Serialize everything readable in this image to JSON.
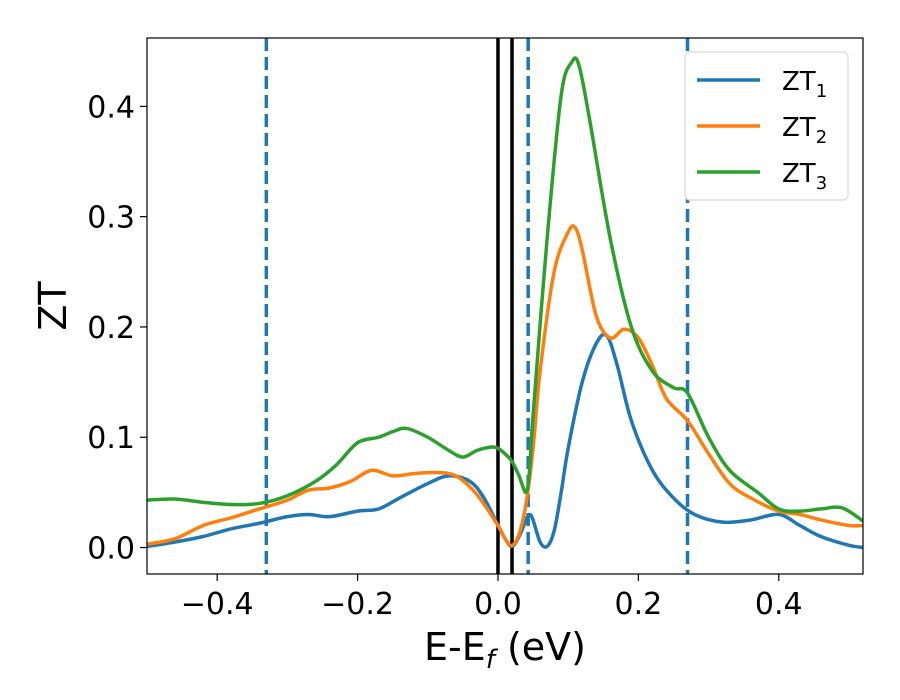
{
  "chart_data": {
    "type": "line",
    "xlabel": "E-E",
    "xlabel_subscript": "f",
    "xlabel_unit": " (eV)",
    "ylabel": "ZT",
    "xlim": [
      -0.5,
      0.52
    ],
    "ylim": [
      -0.024,
      0.462
    ],
    "xticks": [
      -0.4,
      -0.2,
      0.0,
      0.2,
      0.4
    ],
    "xtick_labels": [
      "−0.4",
      "−0.2",
      "0.0",
      "0.2",
      "0.4"
    ],
    "yticks": [
      0.0,
      0.1,
      0.2,
      0.3,
      0.4
    ],
    "ytick_labels": [
      "0.0",
      "0.1",
      "0.2",
      "0.3",
      "0.4"
    ],
    "grid": false,
    "legend_position": "top-right",
    "vlines_dashed": {
      "color": "#1f77b4",
      "x": [
        -0.33,
        0.043,
        0.27
      ]
    },
    "vlines_solid": {
      "color": "#000000",
      "x": [
        0.0,
        0.02
      ]
    },
    "series": [
      {
        "name": "ZT",
        "name_subscript": "1",
        "color": "#1f77b4",
        "x": [
          -0.5,
          -0.46,
          -0.42,
          -0.38,
          -0.34,
          -0.3,
          -0.27,
          -0.24,
          -0.2,
          -0.17,
          -0.14,
          -0.1,
          -0.07,
          -0.04,
          -0.02,
          0.0,
          0.01,
          0.02,
          0.03,
          0.04,
          0.045,
          0.05,
          0.06,
          0.07,
          0.08,
          0.09,
          0.1,
          0.12,
          0.14,
          0.155,
          0.17,
          0.19,
          0.22,
          0.25,
          0.28,
          0.32,
          0.36,
          0.4,
          0.43,
          0.46,
          0.5,
          0.52
        ],
        "values": [
          0.001,
          0.005,
          0.01,
          0.017,
          0.022,
          0.028,
          0.03,
          0.028,
          0.033,
          0.035,
          0.045,
          0.058,
          0.065,
          0.06,
          0.045,
          0.02,
          0.008,
          0.001,
          0.01,
          0.025,
          0.03,
          0.025,
          0.005,
          0.001,
          0.015,
          0.05,
          0.09,
          0.15,
          0.185,
          0.192,
          0.165,
          0.115,
          0.07,
          0.045,
          0.03,
          0.023,
          0.025,
          0.03,
          0.02,
          0.01,
          0.002,
          0.0
        ]
      },
      {
        "name": "ZT",
        "name_subscript": "2",
        "color": "#ff7f0e",
        "x": [
          -0.5,
          -0.46,
          -0.42,
          -0.38,
          -0.34,
          -0.3,
          -0.27,
          -0.24,
          -0.21,
          -0.18,
          -0.15,
          -0.12,
          -0.09,
          -0.06,
          -0.03,
          0.0,
          0.01,
          0.02,
          0.03,
          0.04,
          0.05,
          0.06,
          0.08,
          0.1,
          0.11,
          0.12,
          0.14,
          0.16,
          0.18,
          0.2,
          0.22,
          0.24,
          0.27,
          0.3,
          0.33,
          0.36,
          0.4,
          0.43,
          0.46,
          0.5,
          0.52
        ],
        "values": [
          0.003,
          0.008,
          0.02,
          0.027,
          0.035,
          0.043,
          0.052,
          0.054,
          0.06,
          0.07,
          0.065,
          0.067,
          0.068,
          0.065,
          0.048,
          0.02,
          0.008,
          0.002,
          0.012,
          0.04,
          0.09,
          0.16,
          0.25,
          0.286,
          0.29,
          0.27,
          0.21,
          0.19,
          0.198,
          0.19,
          0.165,
          0.135,
          0.115,
          0.085,
          0.058,
          0.045,
          0.033,
          0.03,
          0.025,
          0.02,
          0.02
        ]
      },
      {
        "name": "ZT",
        "name_subscript": "3",
        "color": "#2ca02c",
        "x": [
          -0.5,
          -0.46,
          -0.42,
          -0.38,
          -0.34,
          -0.3,
          -0.26,
          -0.23,
          -0.2,
          -0.17,
          -0.15,
          -0.13,
          -0.1,
          -0.07,
          -0.05,
          -0.03,
          -0.01,
          0.0,
          0.01,
          0.02,
          0.03,
          0.04,
          0.045,
          0.05,
          0.07,
          0.09,
          0.105,
          0.115,
          0.13,
          0.16,
          0.19,
          0.22,
          0.25,
          0.27,
          0.3,
          0.33,
          0.37,
          0.4,
          0.43,
          0.46,
          0.49,
          0.52
        ],
        "values": [
          0.043,
          0.044,
          0.041,
          0.039,
          0.04,
          0.047,
          0.06,
          0.075,
          0.095,
          0.1,
          0.105,
          0.108,
          0.1,
          0.088,
          0.082,
          0.088,
          0.091,
          0.09,
          0.085,
          0.078,
          0.065,
          0.05,
          0.07,
          0.12,
          0.28,
          0.41,
          0.44,
          0.438,
          0.39,
          0.28,
          0.2,
          0.16,
          0.145,
          0.14,
          0.1,
          0.07,
          0.05,
          0.035,
          0.033,
          0.035,
          0.036,
          0.024
        ]
      }
    ]
  }
}
